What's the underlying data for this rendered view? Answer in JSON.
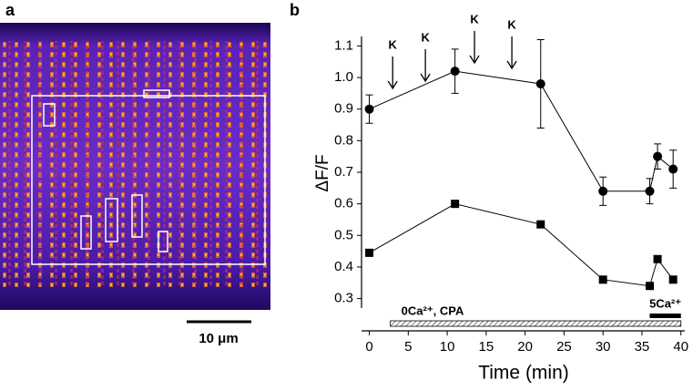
{
  "image": {
    "panel_label": "a",
    "scale_bar": "10 μm"
  },
  "chart_data": {
    "type": "line",
    "panel_label": "b",
    "x_label": "Time  (min)",
    "y_label": "ΔF/F",
    "x": [
      0,
      11,
      22,
      30,
      36,
      37,
      39
    ],
    "series": [
      {
        "color": "#000000",
        "marker": "circle",
        "values": [
          0.9,
          1.02,
          0.98,
          0.64,
          0.64,
          0.75,
          0.71
        ],
        "errors": [
          0.045,
          0.07,
          0.14,
          0.045,
          0.04,
          0.04,
          0.06
        ]
      },
      {
        "color": "#000000",
        "marker": "square",
        "values": [
          0.445,
          0.6,
          0.535,
          0.36,
          0.34,
          0.425,
          0.36
        ]
      }
    ],
    "xlim": [
      -1,
      40.5
    ],
    "xticks": [
      0,
      5,
      10,
      15,
      20,
      25,
      30,
      35,
      40
    ],
    "ylim": [
      0.27,
      1.13
    ],
    "yticks": [
      0.3,
      0.4,
      0.5,
      0.6,
      0.7,
      0.8,
      0.9,
      {
        "value": 1,
        "label": "1.0"
      },
      1.1
    ],
    "annotations": [
      {
        "text": "K",
        "x": 3
      },
      {
        "text": "K",
        "x": 7.2
      },
      {
        "text": "K",
        "x": 13.5
      },
      {
        "text": "K",
        "x": 18.3
      }
    ],
    "bars": [
      {
        "label": "0Ca²⁺, CPA",
        "start": 2.7,
        "end": 40,
        "style": "hatched"
      },
      {
        "label": "5Ca²⁺",
        "start": 36,
        "end": 40,
        "style": "solid"
      }
    ]
  }
}
